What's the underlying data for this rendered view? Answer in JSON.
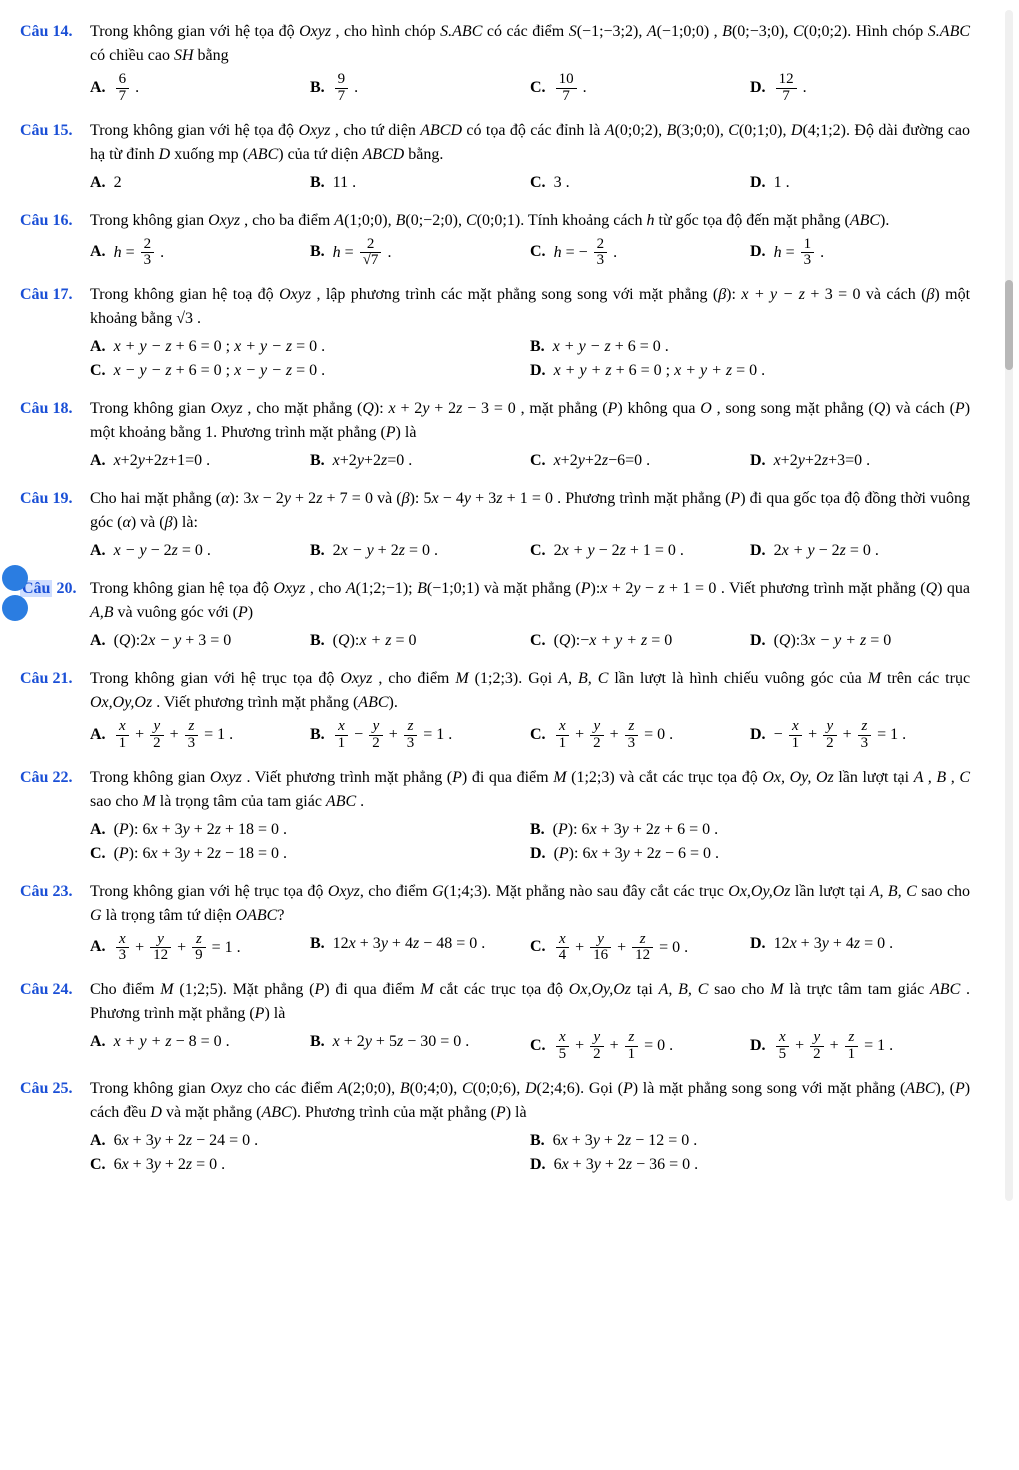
{
  "colors": {
    "label": "#1a4fd6",
    "text": "#000000",
    "highlight": "rgba(60,120,255,0.25)",
    "dot": "#2b7de1"
  },
  "typography": {
    "family": "Times New Roman",
    "size_pt": 12
  },
  "questions": [
    {
      "num": "Câu 14.",
      "text_html": "Trong không gian với hệ tọa độ <span class='ital'>Oxyz</span> , cho hình chóp <span class='ital'>S.ABC</span> có các điểm <span class='ital'>S</span>(−1;−3;2), <span class='ital'>A</span>(−1;0;0) , <span class='ital'>B</span>(0;−3;0), <span class='ital'>C</span>(0;0;2). Hình chóp <span class='ital'>S.ABC</span> có chiều cao <span class='ital'>SH</span> bằng",
      "opts": [
        {
          "w": "w25",
          "html": "<span class='frac'><span class='num'>6</span><span class='den'>7</span></span> ."
        },
        {
          "w": "w25",
          "html": "<span class='frac'><span class='num'>9</span><span class='den'>7</span></span> ."
        },
        {
          "w": "w25",
          "html": "<span class='frac'><span class='num'>10</span><span class='den'>7</span></span> ."
        },
        {
          "w": "w25",
          "html": "<span class='frac'><span class='num'>12</span><span class='den'>7</span></span> ."
        }
      ]
    },
    {
      "num": "Câu 15.",
      "text_html": "Trong không gian với hệ tọa độ <span class='ital'>Oxyz</span> , cho tứ diện <span class='ital'>ABCD</span> có tọa độ các đỉnh là <span class='ital'>A</span>(0;0;2), <span class='ital'>B</span>(3;0;0), <span class='ital'>C</span>(0;1;0), <span class='ital'>D</span>(4;1;2). Độ dài đường cao hạ từ đỉnh <span class='ital'>D</span> xuống mp (<span class='ital'>ABC</span>) của tứ diện <span class='ital'>ABCD</span> bằng.",
      "opts": [
        {
          "w": "w25",
          "html": "2"
        },
        {
          "w": "w25",
          "html": "11 ."
        },
        {
          "w": "w25",
          "html": "3 ."
        },
        {
          "w": "w25",
          "html": "1 ."
        }
      ]
    },
    {
      "num": "Câu 16.",
      "text_html": "Trong không gian <span class='ital'>Oxyz</span> , cho ba điểm <span class='ital'>A</span>(1;0;0), <span class='ital'>B</span>(0;−2;0), <span class='ital'>C</span>(0;0;1). Tính khoảng cách <span class='ital'>h</span> từ gốc tọa độ đến mặt phẳng (<span class='ital'>ABC</span>).",
      "opts": [
        {
          "w": "w25",
          "html": "<span class='ital'>h</span> = <span class='frac'><span class='num'>2</span><span class='den'>3</span></span> ."
        },
        {
          "w": "w25",
          "html": "<span class='ital'>h</span> = <span class='frac'><span class='num'>2</span><span class='den'>√7</span></span> ."
        },
        {
          "w": "w25",
          "html": "<span class='ital'>h</span> = − <span class='frac'><span class='num'>2</span><span class='den'>3</span></span> ."
        },
        {
          "w": "w25",
          "html": "<span class='ital'>h</span> = <span class='frac'><span class='num'>1</span><span class='den'>3</span></span> ."
        }
      ]
    },
    {
      "num": "Câu 17.",
      "text_html": "Trong không gian hệ toạ độ <span class='ital'>Oxyz</span> , lập phương trình các mặt phẳng song song với mặt phẳng (<span class='ital'>β</span>): <span class='ital'>x + y − z</span> + 3 = 0 và cách (<span class='ital'>β</span>) một khoảng bằng √3 .",
      "opts": [
        {
          "w": "w50",
          "html": "<span class='ital'>x + y − z</span> + 6 = 0 ; <span class='ital'>x + y − z</span> = 0 ."
        },
        {
          "w": "w50",
          "html": "<span class='ital'>x + y − z</span> + 6 = 0 ."
        },
        {
          "w": "w50",
          "html": "<span class='ital'>x − y − z</span> + 6 = 0 ; <span class='ital'>x − y − z</span> = 0 ."
        },
        {
          "w": "w50",
          "html": "<span class='ital'>x + y + z</span> + 6 = 0 ; <span class='ital'>x + y + z</span> = 0 ."
        }
      ]
    },
    {
      "num": "Câu 18.",
      "text_html": "Trong không gian <span class='ital'>Oxyz</span> , cho mặt phẳng (<span class='ital'>Q</span>): <span class='ital'>x</span> + 2<span class='ital'>y</span> + 2<span class='ital'>z</span> − 3 = 0 , mặt phẳng (<span class='ital'>P</span>) không qua <span class='ital'>O</span> , song song mặt phẳng (<span class='ital'>Q</span>) và cách (<span class='ital'>P</span>) một khoảng bằng 1. Phương trình mặt phẳng (<span class='ital'>P</span>) là",
      "opts": [
        {
          "w": "w25",
          "html": "<span class='ital'>x</span>+2<span class='ital'>y</span>+2<span class='ital'>z</span>+1=0 ."
        },
        {
          "w": "w25",
          "html": "<span class='ital'>x</span>+2<span class='ital'>y</span>+2<span class='ital'>z</span>=0 ."
        },
        {
          "w": "w25",
          "html": "<span class='ital'>x</span>+2<span class='ital'>y</span>+2<span class='ital'>z</span>−6=0 ."
        },
        {
          "w": "w25",
          "html": "<span class='ital'>x</span>+2<span class='ital'>y</span>+2<span class='ital'>z</span>+3=0 ."
        }
      ]
    },
    {
      "num": "Câu 19.",
      "text_html": "Cho hai mặt phẳng (<span class='ital'>α</span>): 3<span class='ital'>x</span> − 2<span class='ital'>y</span> + 2<span class='ital'>z</span> + 7 = 0 và (<span class='ital'>β</span>): 5<span class='ital'>x</span> − 4<span class='ital'>y</span> + 3<span class='ital'>z</span> + 1 = 0 . Phương trình mặt phẳng (<span class='ital'>P</span>) đi qua gốc tọa độ đồng thời vuông góc (<span class='ital'>α</span>) và (<span class='ital'>β</span>) là:",
      "opts": [
        {
          "w": "w25",
          "html": "<span class='ital'>x − y</span> − 2<span class='ital'>z</span> = 0 ."
        },
        {
          "w": "w25",
          "html": "2<span class='ital'>x − y</span> + 2<span class='ital'>z</span> = 0 ."
        },
        {
          "w": "w25",
          "html": "2<span class='ital'>x + y</span> − 2<span class='ital'>z</span> + 1 = 0 ."
        },
        {
          "w": "w25",
          "html": "2<span class='ital'>x + y</span> − 2<span class='ital'>z</span> = 0 ."
        }
      ]
    },
    {
      "num": "Câu 20.",
      "highlight": true,
      "text_html": "Trong không gian hệ tọa độ <span class='ital'>Oxyz</span> , cho <span class='ital'>A</span>(1;2;−1); <span class='ital'>B</span>(−1;0;1) và mặt phẳng (<span class='ital'>P</span>):<span class='ital'>x</span> + 2<span class='ital'>y</span> − <span class='ital'>z</span> + 1 = 0 . Viết phương trình mặt phẳng (<span class='ital'>Q</span>) qua <span class='ital'>A,B</span> và vuông góc với (<span class='ital'>P</span>)",
      "opts": [
        {
          "w": "w25",
          "html": "(<span class='ital'>Q</span>):2<span class='ital'>x − y</span> + 3 = 0"
        },
        {
          "w": "w25",
          "html": "(<span class='ital'>Q</span>):<span class='ital'>x + z</span> = 0"
        },
        {
          "w": "w25",
          "html": "(<span class='ital'>Q</span>):−<span class='ital'>x + y + z</span> = 0"
        },
        {
          "w": "w25",
          "html": "(<span class='ital'>Q</span>):3<span class='ital'>x − y + z</span> = 0"
        }
      ]
    },
    {
      "num": "Câu 21.",
      "text_html": "Trong không gian với hệ trục tọa độ <span class='ital'>Oxyz</span> , cho điểm <span class='ital'>M</span> (1;2;3). Gọi <span class='ital'>A, B, C</span> lần lượt là hình chiếu vuông góc của <span class='ital'>M</span> trên các trục <span class='ital'>Ox,Oy,Oz</span> . Viết phương trình mặt phẳng (<span class='ital'>ABC</span>).",
      "opts": [
        {
          "w": "w25",
          "html": "<span class='frac'><span class='num'><i>x</i></span><span class='den'>1</span></span> + <span class='frac'><span class='num'><i>y</i></span><span class='den'>2</span></span> + <span class='frac'><span class='num'><i>z</i></span><span class='den'>3</span></span> = 1 ."
        },
        {
          "w": "w25",
          "html": "<span class='frac'><span class='num'><i>x</i></span><span class='den'>1</span></span> − <span class='frac'><span class='num'><i>y</i></span><span class='den'>2</span></span> + <span class='frac'><span class='num'><i>z</i></span><span class='den'>3</span></span> = 1 ."
        },
        {
          "w": "w25",
          "html": "<span class='frac'><span class='num'><i>x</i></span><span class='den'>1</span></span> + <span class='frac'><span class='num'><i>y</i></span><span class='den'>2</span></span> + <span class='frac'><span class='num'><i>z</i></span><span class='den'>3</span></span> = 0 ."
        },
        {
          "w": "w25",
          "html": "− <span class='frac'><span class='num'><i>x</i></span><span class='den'>1</span></span> + <span class='frac'><span class='num'><i>y</i></span><span class='den'>2</span></span> + <span class='frac'><span class='num'><i>z</i></span><span class='den'>3</span></span> = 1 ."
        }
      ]
    },
    {
      "num": "Câu 22.",
      "text_html": "Trong không gian <span class='ital'>Oxyz</span> . Viết phương trình mặt phẳng (<span class='ital'>P</span>) đi qua điểm <span class='ital'>M</span> (1;2;3) và cắt các trục tọa độ <span class='ital'>Ox, Oy, Oz</span> lần lượt tại <span class='ital'>A , B , C</span> sao cho <span class='ital'>M</span> là trọng tâm của tam giác <span class='ital'>ABC</span> .",
      "opts": [
        {
          "w": "w50",
          "html": "(<span class='ital'>P</span>): 6<span class='ital'>x</span> + 3<span class='ital'>y</span> + 2<span class='ital'>z</span> + 18 = 0 ."
        },
        {
          "w": "w50",
          "html": "(<span class='ital'>P</span>): 6<span class='ital'>x</span> + 3<span class='ital'>y</span> + 2<span class='ital'>z</span> + 6 = 0 ."
        },
        {
          "w": "w50",
          "html": "(<span class='ital'>P</span>): 6<span class='ital'>x</span> + 3<span class='ital'>y</span> + 2<span class='ital'>z</span> − 18 = 0 ."
        },
        {
          "w": "w50",
          "html": "(<span class='ital'>P</span>): 6<span class='ital'>x</span> + 3<span class='ital'>y</span> + 2<span class='ital'>z</span> − 6 = 0 ."
        }
      ]
    },
    {
      "num": "Câu 23.",
      "text_html": "Trong không gian với hệ trục tọa độ <span class='ital'>Oxyz</span>, cho điểm <span class='ital'>G</span>(1;4;3). Mặt phẳng nào sau đây cắt các trục <span class='ital'>Ox,Oy,Oz</span> lần lượt tại <span class='ital'>A, B, C</span> sao cho <span class='ital'>G</span> là trọng tâm tứ diện <span class='ital'>OABC</span>?",
      "opts": [
        {
          "w": "w25",
          "html": "<span class='frac'><span class='num'><i>x</i></span><span class='den'>3</span></span> + <span class='frac'><span class='num'><i>y</i></span><span class='den'>12</span></span> + <span class='frac'><span class='num'><i>z</i></span><span class='den'>9</span></span> = 1 ."
        },
        {
          "w": "w25",
          "html": "12<span class='ital'>x</span> + 3<span class='ital'>y</span> + 4<span class='ital'>z</span> − 48 = 0 ."
        },
        {
          "w": "w25",
          "html": "<span class='frac'><span class='num'><i>x</i></span><span class='den'>4</span></span> + <span class='frac'><span class='num'><i>y</i></span><span class='den'>16</span></span> + <span class='frac'><span class='num'><i>z</i></span><span class='den'>12</span></span> = 0 ."
        },
        {
          "w": "w25",
          "html": "12<span class='ital'>x</span> + 3<span class='ital'>y</span> + 4<span class='ital'>z</span> = 0 ."
        }
      ]
    },
    {
      "num": "Câu 24.",
      "text_html": "Cho điểm <span class='ital'>M</span> (1;2;5). Mặt phẳng (<span class='ital'>P</span>) đi qua điểm <span class='ital'>M</span> cắt các trục tọa độ <span class='ital'>Ox,Oy,Oz</span> tại <span class='ital'>A, B, C</span> sao cho <span class='ital'>M</span> là trực tâm tam giác <span class='ital'>ABC</span> . Phương trình mặt phẳng (<span class='ital'>P</span>) là",
      "opts": [
        {
          "w": "w25",
          "html": "<span class='ital'>x + y + z</span> − 8 = 0 ."
        },
        {
          "w": "w25",
          "html": "<span class='ital'>x</span> + 2<span class='ital'>y</span> + 5<span class='ital'>z</span> − 30 = 0 ."
        },
        {
          "w": "w25",
          "html": "<span class='frac'><span class='num'><i>x</i></span><span class='den'>5</span></span> + <span class='frac'><span class='num'><i>y</i></span><span class='den'>2</span></span> + <span class='frac'><span class='num'><i>z</i></span><span class='den'>1</span></span> = 0 ."
        },
        {
          "w": "w25",
          "html": "<span class='frac'><span class='num'><i>x</i></span><span class='den'>5</span></span> + <span class='frac'><span class='num'><i>y</i></span><span class='den'>2</span></span> + <span class='frac'><span class='num'><i>z</i></span><span class='den'>1</span></span> = 1 ."
        }
      ]
    },
    {
      "num": "Câu 25.",
      "text_html": "Trong không gian <span class='ital'>Oxyz</span> cho các điểm <span class='ital'>A</span>(2;0;0), <span class='ital'>B</span>(0;4;0), <span class='ital'>C</span>(0;0;6), <span class='ital'>D</span>(2;4;6). Gọi (<span class='ital'>P</span>) là mặt phẳng song song với mặt phẳng (<span class='ital'>ABC</span>), (<span class='ital'>P</span>) cách đều <span class='ital'>D</span> và mặt phẳng (<span class='ital'>ABC</span>). Phương trình của mặt phẳng (<span class='ital'>P</span>) là",
      "opts": [
        {
          "w": "w50",
          "html": "6<span class='ital'>x</span> + 3<span class='ital'>y</span> + 2<span class='ital'>z</span> − 24 = 0 ."
        },
        {
          "w": "w50",
          "html": "6<span class='ital'>x</span> + 3<span class='ital'>y</span> + 2<span class='ital'>z</span> − 12 = 0 ."
        },
        {
          "w": "w50",
          "html": "6<span class='ital'>x</span> + 3<span class='ital'>y</span> + 2<span class='ital'>z</span> = 0 ."
        },
        {
          "w": "w50",
          "html": "6<span class='ital'>x</span> + 3<span class='ital'>y</span> + 2<span class='ital'>z</span> − 36 = 0 ."
        }
      ]
    }
  ],
  "opt_labels": [
    "A.",
    "B.",
    "C.",
    "D."
  ]
}
